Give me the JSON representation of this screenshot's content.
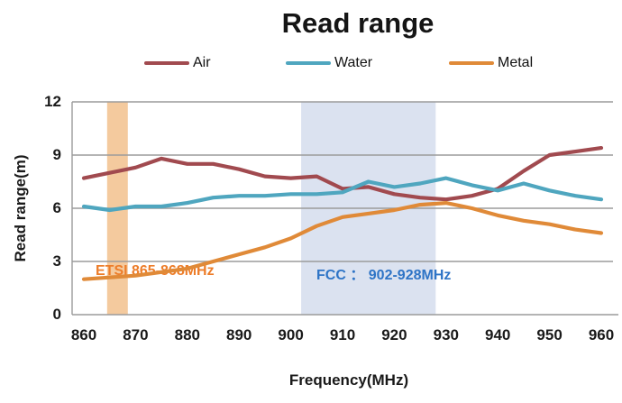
{
  "title": "Read range",
  "legend": {
    "items": [
      {
        "label": "Air"
      },
      {
        "label": "Water"
      },
      {
        "label": "Metal"
      }
    ]
  },
  "x_axis": {
    "title": "Frequency(MHz)",
    "ticks": [
      "860",
      "870",
      "880",
      "890",
      "900",
      "910",
      "920",
      "930",
      "940",
      "950",
      "960"
    ]
  },
  "y_axis": {
    "title": "Read range(m)",
    "ticks": [
      "0",
      "3",
      "6",
      "9",
      "12"
    ]
  },
  "colors": {
    "air_line": "#A14A4F",
    "water_line": "#4FA6BF",
    "metal_line": "#E08A38",
    "etsi_band_fill": "#F4CA9E",
    "fcc_band_fill": "#DBE2F0",
    "etsi_text": "#ED7D2A",
    "fcc_text": "#2E74C6",
    "gridline": "#9B9B9B",
    "text": "#1a1a1a"
  },
  "chart_data": {
    "type": "line",
    "x": [
      860,
      865,
      870,
      875,
      880,
      885,
      890,
      895,
      900,
      905,
      910,
      915,
      920,
      925,
      930,
      935,
      940,
      945,
      950,
      955,
      960
    ],
    "series": [
      {
        "name": "Air",
        "color": "#A14A4F",
        "values": [
          7.7,
          8.0,
          8.3,
          8.8,
          8.5,
          8.5,
          8.2,
          7.8,
          7.7,
          7.8,
          7.1,
          7.2,
          6.8,
          6.6,
          6.5,
          6.7,
          7.1,
          8.1,
          9.0,
          9.2,
          9.4
        ]
      },
      {
        "name": "Water",
        "color": "#4FA6BF",
        "values": [
          6.1,
          5.9,
          6.1,
          6.1,
          6.3,
          6.6,
          6.7,
          6.7,
          6.8,
          6.8,
          6.9,
          7.5,
          7.2,
          7.4,
          7.7,
          7.3,
          7.0,
          7.4,
          7.0,
          6.7,
          6.5
        ]
      },
      {
        "name": "Metal",
        "color": "#E08A38",
        "values": [
          2.0,
          2.1,
          2.2,
          2.4,
          2.6,
          3.0,
          3.4,
          3.8,
          4.3,
          5.0,
          5.5,
          5.7,
          5.9,
          6.2,
          6.3,
          6.0,
          5.6,
          5.3,
          5.1,
          4.8,
          4.6
        ]
      }
    ],
    "bands": [
      {
        "label": "ETSI 865-868MHz",
        "from": 864.5,
        "to": 868.5,
        "fill": "#F4CA9E",
        "text_color": "#ED7D2A"
      },
      {
        "label": "FCC ： 902-928MHz",
        "from": 902,
        "to": 928,
        "fill": "#DBE2F0",
        "text_color": "#2E74C6"
      }
    ],
    "title": "Read range",
    "xlabel": "Frequency(MHz)",
    "ylabel": "Read range(m)",
    "xlim": [
      860,
      960
    ],
    "ylim": [
      0,
      12
    ],
    "y_tick_step": 3,
    "grid": true,
    "legend_position": "top"
  }
}
